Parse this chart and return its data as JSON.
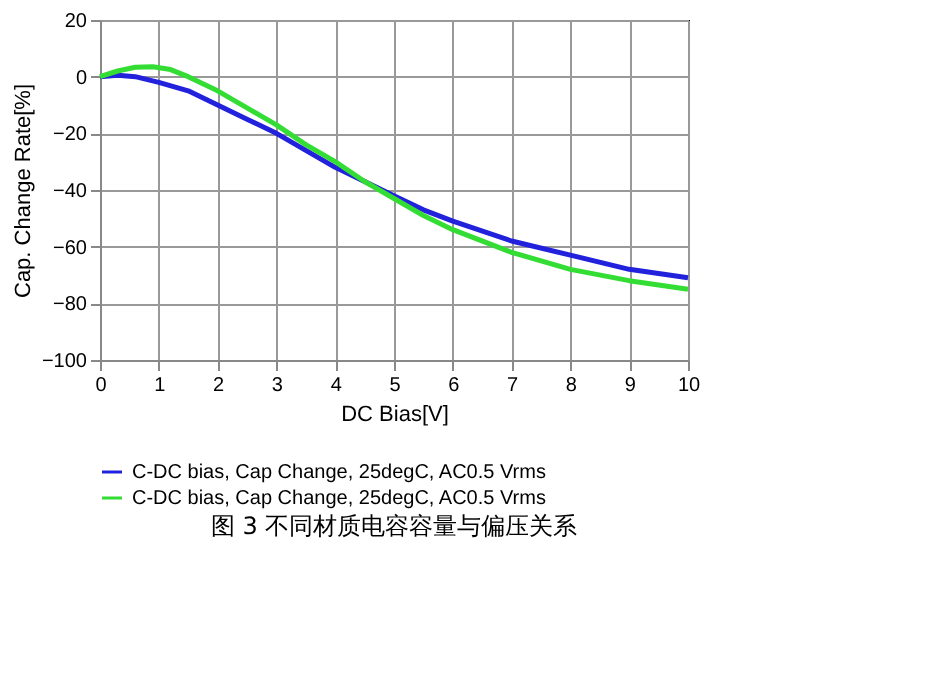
{
  "chart_data": {
    "type": "line",
    "title": "图 3 不同材质电容容量与偏压关系",
    "xlabel": "DC Bias[V]",
    "ylabel": "Cap. Change Rate[%]",
    "xlim": [
      0,
      10
    ],
    "xticks": [
      0,
      1,
      2,
      3,
      4,
      5,
      6,
      7,
      8,
      9,
      10
    ],
    "ylim": [
      -100,
      20
    ],
    "yticks": [
      -100,
      -80,
      -60,
      -40,
      -20,
      0,
      20
    ],
    "grid": true,
    "legend": "bottom",
    "line_style": "solid",
    "series": [
      {
        "name": "C-DC bias, Cap Change, 25degC, AC0.5 Vrms",
        "color": "#2222dd",
        "x": [
          0,
          0.3,
          0.6,
          1,
          1.5,
          2,
          2.5,
          3,
          3.5,
          4,
          4.5,
          5,
          5.5,
          6,
          7,
          8,
          9,
          10
        ],
        "values": [
          0,
          0.5,
          0,
          -2,
          -5,
          -10,
          -15,
          -20,
          -26,
          -32,
          -37,
          -42,
          -47,
          -51,
          -58,
          -63,
          -68,
          -71
        ]
      },
      {
        "name": "C-DC bias, Cap Change, 25degC, AC0.5 Vrms ",
        "color": "#33dd33",
        "x": [
          0,
          0.3,
          0.6,
          0.9,
          1.2,
          1.5,
          2,
          2.5,
          3,
          3.5,
          4,
          4.5,
          5,
          5.5,
          6,
          7,
          8,
          9,
          10
        ],
        "values": [
          0,
          2,
          3.3,
          3.5,
          2.5,
          0,
          -5,
          -11,
          -17,
          -24,
          -30,
          -37,
          -43,
          -49,
          -54,
          -62,
          -68,
          -72,
          -75
        ]
      }
    ]
  }
}
